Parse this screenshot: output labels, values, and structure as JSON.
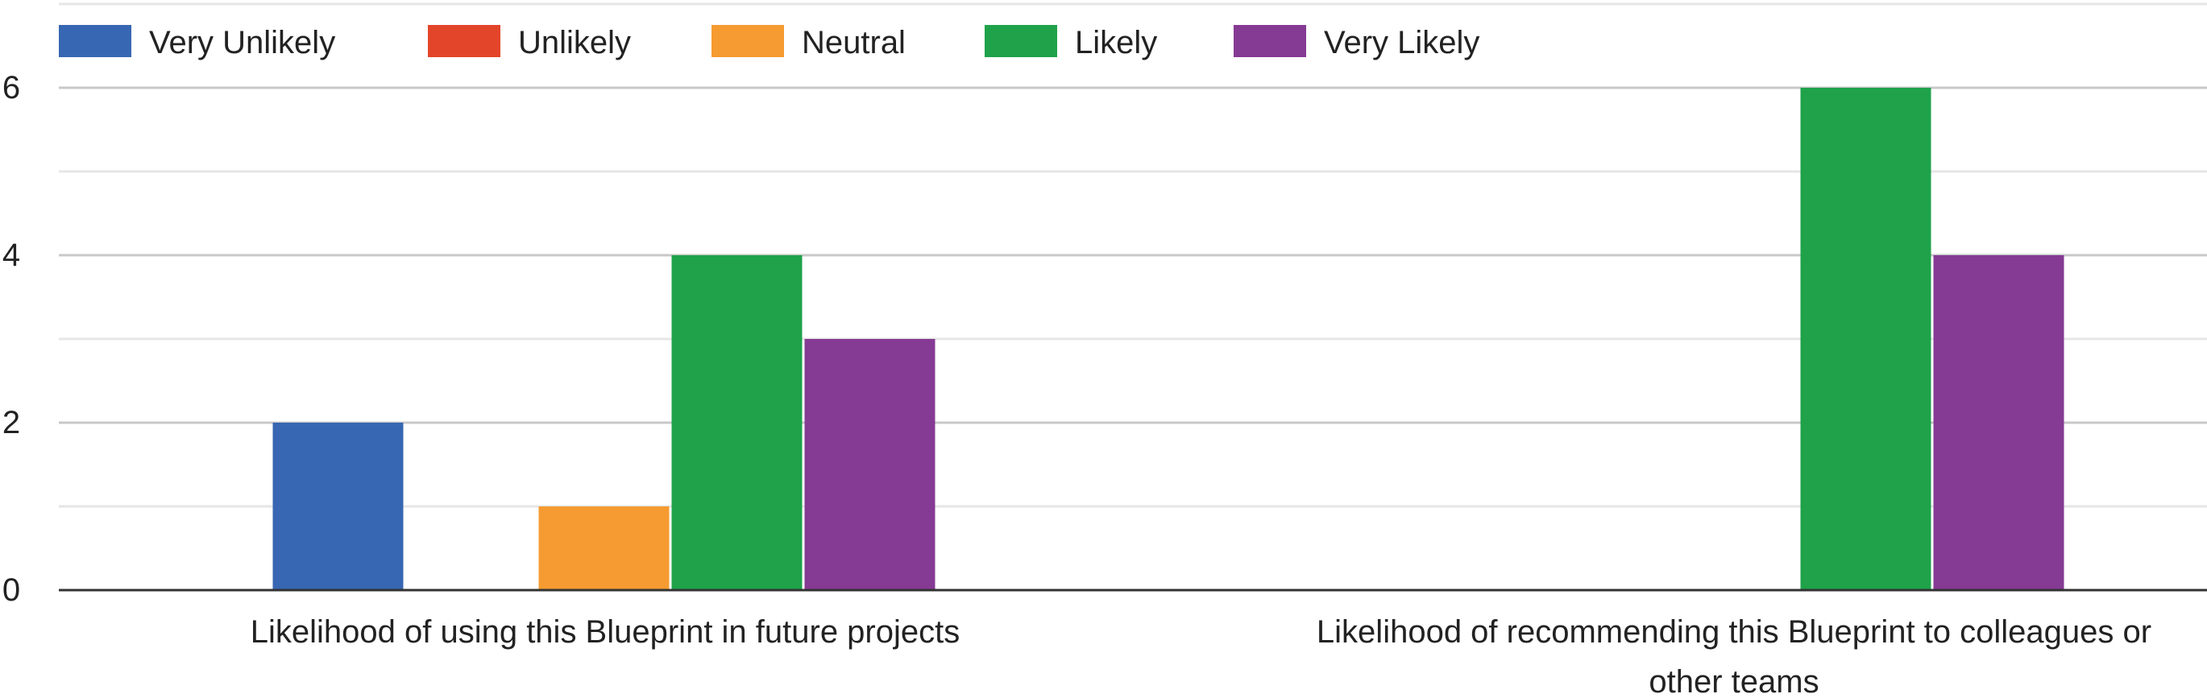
{
  "chart_data": {
    "type": "bar",
    "title": "",
    "xlabel": "",
    "ylabel": "",
    "ylim": [
      0,
      7.2
    ],
    "y_ticks": [
      "0",
      "2",
      "4",
      "6"
    ],
    "y_tick_values": [
      0,
      2,
      4,
      6
    ],
    "minor_gridlines": true,
    "legend_position": "top-left",
    "categories": [
      [
        "Likelihood of using this Blueprint in future projects"
      ],
      [
        "Likelihood of recommending this Blueprint to colleagues or",
        "other teams"
      ]
    ],
    "series": [
      {
        "name": "Very Unlikely",
        "color": "#3767b2",
        "values": [
          2,
          0
        ]
      },
      {
        "name": "Unlikely",
        "color": "#e3452a",
        "values": [
          0,
          0
        ]
      },
      {
        "name": "Neutral",
        "color": "#f59b31",
        "values": [
          1,
          0
        ]
      },
      {
        "name": "Likely",
        "color": "#1fa24a",
        "values": [
          4,
          6
        ]
      },
      {
        "name": "Very Likely",
        "color": "#853a93",
        "values": [
          3,
          4
        ]
      }
    ]
  }
}
